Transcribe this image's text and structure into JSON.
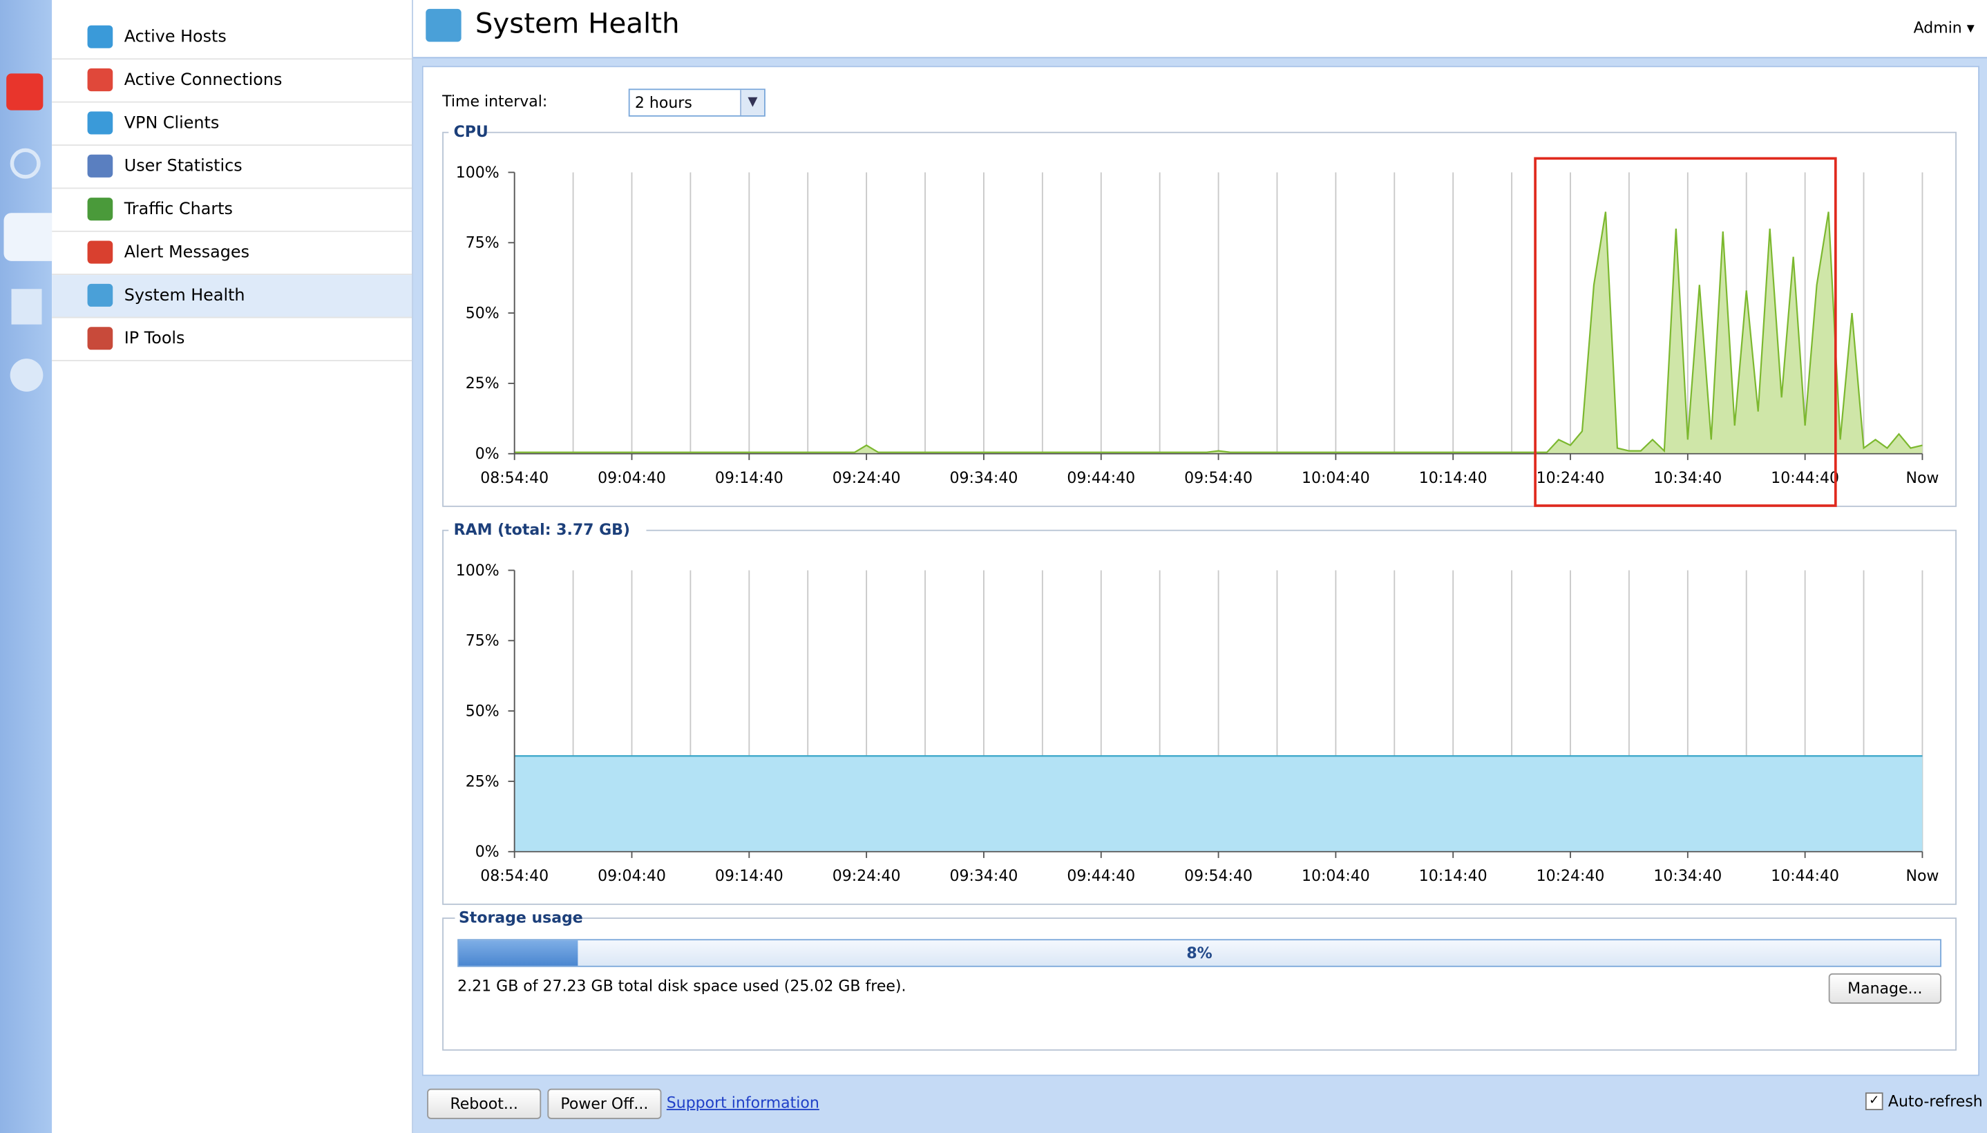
{
  "nav": [
    "Active Hosts",
    "Active Connections",
    "VPN Clients",
    "User Statistics",
    "Traffic Charts",
    "Alert Messages",
    "System Health",
    "IP Tools"
  ],
  "header": {
    "title": "System Health",
    "user": "Admin"
  },
  "controls": {
    "interval_label": "Time interval:",
    "interval_value": "2 hours"
  },
  "chart_data": [
    {
      "type": "area",
      "title": "CPU",
      "color": "#7cb82f",
      "fill": "#cfe6a8",
      "categories": [
        "08:54:40",
        null,
        null,
        null,
        null,
        null,
        null,
        null,
        null,
        null,
        "09:04:40",
        null,
        null,
        null,
        null,
        null,
        null,
        null,
        null,
        null,
        "09:14:40",
        null,
        null,
        null,
        null,
        null,
        null,
        null,
        null,
        null,
        "09:24:40",
        null,
        null,
        null,
        null,
        null,
        null,
        null,
        null,
        null,
        "09:34:40",
        null,
        null,
        null,
        null,
        null,
        null,
        null,
        null,
        null,
        "09:44:40",
        null,
        null,
        null,
        null,
        null,
        null,
        null,
        null,
        null,
        "09:54:40",
        null,
        null,
        null,
        null,
        null,
        null,
        null,
        null,
        null,
        "10:04:40",
        null,
        null,
        null,
        null,
        null,
        null,
        null,
        null,
        null,
        "10:14:40",
        null,
        null,
        null,
        null,
        null,
        null,
        null,
        null,
        null,
        "10:24:40",
        null,
        null,
        null,
        null,
        null,
        null,
        null,
        null,
        null,
        "10:34:40",
        null,
        null,
        null,
        null,
        null,
        null,
        null,
        null,
        null,
        "10:44:40",
        null,
        null,
        null,
        null,
        null,
        null,
        null,
        null,
        null,
        "Now"
      ],
      "values": [
        0.5,
        0.5,
        0.5,
        0.5,
        0.5,
        0.5,
        0.5,
        0.5,
        0.5,
        0.5,
        0.5,
        0.5,
        0.5,
        0.5,
        0.5,
        0.5,
        0.5,
        0.5,
        0.5,
        0.5,
        0.5,
        0.5,
        0.5,
        0.5,
        0.5,
        0.5,
        0.5,
        0.5,
        0.5,
        0.5,
        3,
        0.5,
        0.5,
        0.5,
        0.5,
        0.5,
        0.5,
        0.5,
        0.5,
        0.5,
        0.5,
        0.5,
        0.5,
        0.5,
        0.5,
        0.5,
        0.5,
        0.5,
        0.5,
        0.5,
        0.5,
        0.5,
        0.5,
        0.5,
        0.5,
        0.5,
        0.5,
        0.5,
        0.5,
        0.5,
        1,
        0.5,
        0.5,
        0.5,
        0.5,
        0.5,
        0.5,
        0.5,
        0.5,
        0.5,
        0.5,
        0.5,
        0.5,
        0.5,
        0.5,
        0.5,
        0.5,
        0.5,
        0.5,
        0.5,
        0.5,
        0.5,
        0.5,
        0.5,
        0.5,
        0.5,
        0.5,
        0.5,
        0.5,
        5,
        3,
        8,
        60,
        86,
        2,
        1,
        1,
        5,
        1,
        80,
        5,
        60,
        5,
        79,
        10,
        58,
        15,
        80,
        20,
        70,
        10,
        60,
        86,
        5,
        50,
        2,
        5,
        2,
        7,
        2,
        3
      ],
      "ylim": [
        0,
        100
      ],
      "yticks": [
        {
          "value": 0,
          "label": "0%"
        },
        {
          "value": 25,
          "label": "25%"
        },
        {
          "value": 50,
          "label": "50%"
        },
        {
          "value": 75,
          "label": "75%"
        },
        {
          "value": 100,
          "label": "100%"
        }
      ]
    },
    {
      "type": "area",
      "title": "RAM (total: 3.77 GB)",
      "color": "#3aa6c8",
      "fill": "#b3e2f5",
      "categories": [
        "08:54:40",
        "09:04:40",
        "09:14:40",
        "09:24:40",
        "09:34:40",
        "09:44:40",
        "09:54:40",
        "10:04:40",
        "10:14:40",
        "10:24:40",
        "10:34:40",
        "10:44:40",
        "Now"
      ],
      "values": [
        34,
        34,
        34,
        34,
        34,
        34,
        34,
        34,
        34,
        34,
        34,
        34,
        34
      ],
      "ylim": [
        0,
        100
      ],
      "yticks": [
        {
          "value": 0,
          "label": "0%"
        },
        {
          "value": 25,
          "label": "25%"
        },
        {
          "value": 50,
          "label": "50%"
        },
        {
          "value": 75,
          "label": "75%"
        },
        {
          "value": 100,
          "label": "100%"
        }
      ]
    }
  ],
  "storage": {
    "title": "Storage usage",
    "value": 8,
    "value_label": "8%",
    "text": "2.21 GB of 27.23 GB total disk space used (25.02 GB free).",
    "button": "Manage..."
  },
  "footer": {
    "reboot": "Reboot...",
    "poweroff": "Power Off...",
    "support": "Support information",
    "autorefresh": "Auto-refresh"
  }
}
